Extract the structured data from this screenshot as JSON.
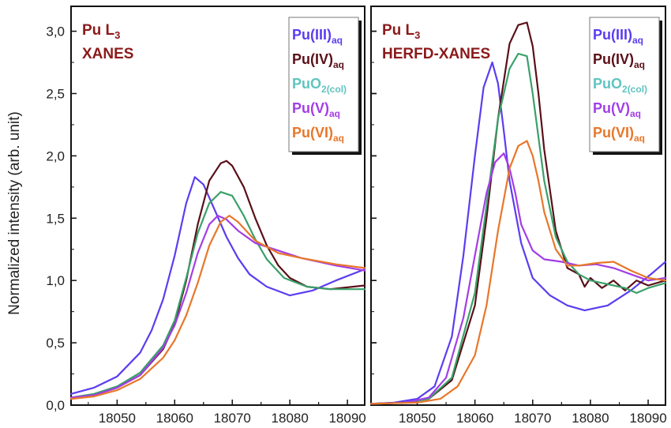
{
  "chart_data": {
    "type": "line",
    "ylabel": "Normalized intensity (arb. unit)",
    "ylim": [
      0,
      3.2
    ],
    "y_ticks": [
      "0,0",
      "0,5",
      "1,0",
      "1,5",
      "2,0",
      "2,5",
      "3,0"
    ],
    "x_ticks": [
      "18050",
      "18060",
      "18070",
      "18080",
      "18090"
    ],
    "legend_placement": "top-right",
    "colors": {
      "Pu(III)": "#5b3df0",
      "Pu(IV)": "#5a1018",
      "PuO2": "#5fc4c0",
      "Pu(V)": "#a23ee6",
      "Pu(VI)": "#e8772a",
      "green": "#3aa06a",
      "title": "#8b1a1a"
    },
    "legend": [
      {
        "base": "Pu(III)",
        "sub": "aq",
        "color_key": "Pu(III)"
      },
      {
        "base": "Pu(IV)",
        "sub": "aq",
        "color_key": "Pu(IV)"
      },
      {
        "base": "PuO",
        "sub": "2(col)",
        "color_key": "PuO2"
      },
      {
        "base": "Pu(V)",
        "sub": "aq",
        "color_key": "Pu(V)"
      },
      {
        "base": "Pu(VI)",
        "sub": "aq",
        "color_key": "Pu(VI)"
      }
    ],
    "panels": [
      {
        "title_line1": "Pu L",
        "title_sub": "3",
        "title_line2": "XANES",
        "xlim": [
          18042,
          18093
        ],
        "series": [
          {
            "color_key": "Pu(III)",
            "x": [
              18042,
              18046,
              18050,
              18054,
              18056,
              18058,
              18060,
              18062,
              18063.5,
              18065,
              18067,
              18069,
              18071,
              18073,
              18076,
              18080,
              18084,
              18088,
              18093
            ],
            "y": [
              0.09,
              0.14,
              0.23,
              0.42,
              0.6,
              0.85,
              1.2,
              1.62,
              1.83,
              1.77,
              1.56,
              1.35,
              1.18,
              1.05,
              0.95,
              0.88,
              0.92,
              1.0,
              1.09
            ]
          },
          {
            "color_key": "Pu(IV)",
            "x": [
              18042,
              18046,
              18050,
              18054,
              18058,
              18060,
              18062,
              18064,
              18066,
              18068,
              18069,
              18070,
              18072,
              18074,
              18076,
              18078,
              18080,
              18083,
              18087,
              18093
            ],
            "y": [
              0.06,
              0.08,
              0.14,
              0.24,
              0.45,
              0.65,
              1.0,
              1.45,
              1.8,
              1.94,
              1.96,
              1.92,
              1.75,
              1.5,
              1.28,
              1.12,
              1.02,
              0.95,
              0.93,
              0.96
            ]
          },
          {
            "color_key": "green",
            "x": [
              18042,
              18046,
              18050,
              18054,
              18058,
              18060,
              18062,
              18064,
              18066,
              18068,
              18070,
              18072,
              18074,
              18076,
              18079,
              18083,
              18087,
              18093
            ],
            "y": [
              0.06,
              0.09,
              0.15,
              0.26,
              0.48,
              0.68,
              1.02,
              1.38,
              1.62,
              1.71,
              1.68,
              1.52,
              1.33,
              1.17,
              1.02,
              0.95,
              0.93,
              0.93
            ]
          },
          {
            "color_key": "Pu(V)",
            "x": [
              18042,
              18046,
              18050,
              18054,
              18058,
              18060,
              18062,
              18064,
              18066,
              18067.5,
              18069,
              18071,
              18074,
              18078,
              18082,
              18088,
              18093
            ],
            "y": [
              0.06,
              0.08,
              0.14,
              0.24,
              0.46,
              0.64,
              0.9,
              1.22,
              1.45,
              1.52,
              1.49,
              1.4,
              1.3,
              1.24,
              1.18,
              1.12,
              1.08
            ]
          },
          {
            "color_key": "Pu(VI)",
            "x": [
              18042,
              18046,
              18050,
              18054,
              18058,
              18060,
              18062,
              18064,
              18066,
              18068,
              18069.5,
              18071,
              18074,
              18078,
              18082,
              18088,
              18093
            ],
            "y": [
              0.05,
              0.07,
              0.12,
              0.21,
              0.38,
              0.52,
              0.72,
              0.98,
              1.28,
              1.47,
              1.52,
              1.47,
              1.32,
              1.22,
              1.18,
              1.13,
              1.1
            ]
          }
        ]
      },
      {
        "title_line1": "Pu L",
        "title_sub": "3",
        "title_line2": "HERFD-XANES",
        "xlim": [
          18042,
          18093
        ],
        "series": [
          {
            "color_key": "Pu(III)",
            "x": [
              18042,
              18046,
              18050,
              18053,
              18056,
              18058,
              18060,
              18061.5,
              18063,
              18064,
              18065,
              18066,
              18068,
              18070,
              18073,
              18076,
              18079,
              18083,
              18087,
              18091,
              18093
            ],
            "y": [
              0.01,
              0.02,
              0.05,
              0.15,
              0.55,
              1.2,
              2.0,
              2.55,
              2.75,
              2.58,
              2.2,
              1.8,
              1.3,
              1.02,
              0.88,
              0.8,
              0.76,
              0.8,
              0.92,
              1.07,
              1.15
            ]
          },
          {
            "color_key": "Pu(IV)",
            "x": [
              18042,
              18048,
              18052,
              18056,
              18060,
              18062,
              18064,
              18066,
              18067.5,
              18069,
              18070,
              18071,
              18072,
              18074,
              18076,
              18078,
              18079,
              18080,
              18082,
              18084,
              18086,
              18088,
              18090,
              18093
            ],
            "y": [
              0.01,
              0.02,
              0.05,
              0.2,
              0.8,
              1.5,
              2.3,
              2.9,
              3.05,
              3.07,
              2.88,
              2.5,
              2.05,
              1.4,
              1.1,
              1.05,
              0.95,
              1.02,
              0.94,
              1.0,
              0.92,
              1.0,
              0.96,
              1.0
            ]
          },
          {
            "color_key": "green",
            "x": [
              18042,
              18048,
              18052,
              18056,
              18060,
              18062,
              18064,
              18066,
              18067.5,
              18069,
              18070,
              18072,
              18074,
              18076,
              18078,
              18080,
              18082,
              18084,
              18086,
              18088,
              18090,
              18093
            ],
            "y": [
              0.01,
              0.02,
              0.05,
              0.22,
              0.9,
              1.6,
              2.3,
              2.7,
              2.82,
              2.8,
              2.5,
              1.8,
              1.35,
              1.15,
              1.05,
              1.0,
              0.98,
              0.96,
              0.94,
              0.9,
              0.94,
              0.98
            ]
          },
          {
            "color_key": "Pu(V)",
            "x": [
              18042,
              18048,
              18052,
              18055,
              18058,
              18060,
              18062,
              18063.5,
              18065,
              18066,
              18067,
              18068,
              18070,
              18072,
              18075,
              18078,
              18081,
              18084,
              18087,
              18090,
              18093
            ],
            "y": [
              0.01,
              0.02,
              0.06,
              0.22,
              0.7,
              1.2,
              1.7,
              1.95,
              2.02,
              1.9,
              1.7,
              1.45,
              1.24,
              1.17,
              1.15,
              1.12,
              1.13,
              1.1,
              1.05,
              1.0,
              1.02
            ]
          },
          {
            "color_key": "Pu(VI)",
            "x": [
              18042,
              18050,
              18054,
              18057,
              18060,
              18062,
              18064,
              18066,
              18067.5,
              18069,
              18070,
              18071,
              18072,
              18074,
              18076,
              18078,
              18081,
              18084,
              18087,
              18090,
              18093
            ],
            "y": [
              0.01,
              0.02,
              0.05,
              0.15,
              0.4,
              0.8,
              1.4,
              1.9,
              2.08,
              2.12,
              2.0,
              1.8,
              1.55,
              1.25,
              1.12,
              1.12,
              1.14,
              1.15,
              1.08,
              1.02,
              1.0
            ]
          }
        ]
      }
    ]
  }
}
